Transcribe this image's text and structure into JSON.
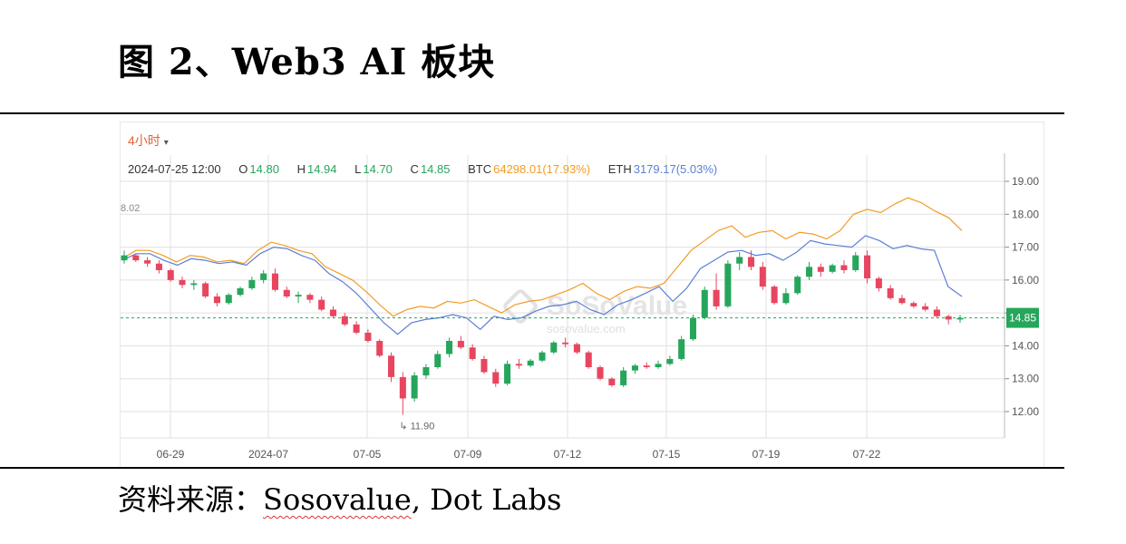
{
  "figure": {
    "title": "图 2、Web3 AI 板块",
    "source_label": "资料来源：",
    "source_name": "Sosovalue",
    "source_rest": ", Dot Labs"
  },
  "toolbar": {
    "interval": "4小时",
    "interval_caret": "▾"
  },
  "info": {
    "date": "2024-07-25 12:00",
    "o_label": "O",
    "o_value": "14.80",
    "h_label": "H",
    "h_value": "14.94",
    "l_label": "L",
    "l_value": "14.70",
    "c_label": "C",
    "c_value": "14.85",
    "btc_label": "BTC",
    "btc_value": "64298.01(17.93%)",
    "eth_label": "ETH",
    "eth_value": "3179.17(5.03%)"
  },
  "watermark": {
    "brand": "SoSoValue",
    "url": "sosovalue.com"
  },
  "colors": {
    "up": "#26a65b",
    "down": "#e8455f",
    "btc": "#f39c24",
    "eth": "#5b7fd6",
    "price_line": "#26a65b",
    "grid": "#e0e0e0"
  },
  "chart_data": {
    "type": "line",
    "y_ticks": [
      "19.00",
      "18.00",
      "17.00",
      "16.00",
      "15.00",
      "14.00",
      "13.00",
      "12.00"
    ],
    "ylim": [
      11.2,
      19.8
    ],
    "x_ticks": [
      "06-29",
      "2024-07",
      "07-05",
      "07-09",
      "07-12",
      "07-15",
      "07-19",
      "07-22"
    ],
    "current_price": "14.85",
    "min_label": "11.90",
    "max_label_partial": "8.02",
    "series": [
      {
        "name": "BTC",
        "values": [
          16.65,
          16.9,
          16.9,
          16.75,
          16.55,
          16.75,
          16.7,
          16.55,
          16.6,
          16.5,
          16.9,
          17.15,
          17.05,
          16.9,
          16.8,
          16.4,
          16.2,
          16.0,
          15.65,
          15.25,
          14.9,
          15.1,
          15.2,
          15.15,
          15.35,
          15.3,
          15.4,
          15.2,
          15.0,
          15.25,
          15.35,
          15.4,
          15.55,
          15.7,
          15.9,
          15.6,
          15.4,
          15.65,
          15.8,
          15.75,
          15.9,
          16.4,
          16.9,
          17.2,
          17.5,
          17.65,
          17.3,
          17.45,
          17.5,
          17.25,
          17.45,
          17.4,
          17.25,
          17.5,
          18.0,
          18.15,
          18.05,
          18.3,
          18.5,
          18.35,
          18.1,
          17.9,
          17.5
        ],
        "color": "#f39c24"
      },
      {
        "name": "ETH",
        "values": [
          16.6,
          16.8,
          16.8,
          16.6,
          16.45,
          16.65,
          16.6,
          16.5,
          16.55,
          16.45,
          16.8,
          17.0,
          16.95,
          16.75,
          16.6,
          16.2,
          15.95,
          15.6,
          15.15,
          14.7,
          14.35,
          14.7,
          14.8,
          14.85,
          14.95,
          14.85,
          14.5,
          14.9,
          14.8,
          14.85,
          15.05,
          15.2,
          15.25,
          15.35,
          15.1,
          14.95,
          15.25,
          15.4,
          15.6,
          15.8,
          15.35,
          15.75,
          16.35,
          16.6,
          16.85,
          16.9,
          16.75,
          16.8,
          16.6,
          16.85,
          17.2,
          17.1,
          17.05,
          17.0,
          17.35,
          17.2,
          16.95,
          17.05,
          16.95,
          16.9,
          15.8,
          15.5
        ],
        "color": "#5b7fd6"
      }
    ],
    "candles": [
      [
        16.6,
        16.9,
        16.5,
        16.75
      ],
      [
        16.75,
        16.8,
        16.55,
        16.6
      ],
      [
        16.6,
        16.7,
        16.4,
        16.5
      ],
      [
        16.5,
        16.6,
        16.2,
        16.3
      ],
      [
        16.3,
        16.35,
        15.95,
        16.0
      ],
      [
        16.0,
        16.1,
        15.75,
        15.85
      ],
      [
        15.85,
        16.0,
        15.7,
        15.9
      ],
      [
        15.9,
        15.95,
        15.45,
        15.5
      ],
      [
        15.5,
        15.6,
        15.2,
        15.3
      ],
      [
        15.3,
        15.6,
        15.25,
        15.55
      ],
      [
        15.55,
        15.8,
        15.5,
        15.75
      ],
      [
        15.75,
        16.1,
        15.7,
        16.0
      ],
      [
        16.0,
        16.3,
        15.9,
        16.2
      ],
      [
        16.2,
        16.35,
        15.65,
        15.7
      ],
      [
        15.7,
        15.8,
        15.45,
        15.5
      ],
      [
        15.5,
        15.65,
        15.3,
        15.55
      ],
      [
        15.55,
        15.6,
        15.3,
        15.4
      ],
      [
        15.4,
        15.5,
        15.05,
        15.1
      ],
      [
        15.1,
        15.2,
        14.85,
        14.9
      ],
      [
        14.9,
        15.0,
        14.6,
        14.65
      ],
      [
        14.65,
        14.75,
        14.35,
        14.4
      ],
      [
        14.4,
        14.5,
        14.1,
        14.15
      ],
      [
        14.15,
        14.2,
        13.65,
        13.7
      ],
      [
        13.7,
        13.8,
        12.9,
        13.05
      ],
      [
        13.05,
        13.2,
        11.9,
        12.4
      ],
      [
        12.4,
        13.2,
        12.3,
        13.1
      ],
      [
        13.1,
        13.45,
        13.0,
        13.35
      ],
      [
        13.35,
        13.85,
        13.3,
        13.75
      ],
      [
        13.75,
        14.25,
        13.65,
        14.15
      ],
      [
        14.15,
        14.3,
        13.9,
        13.95
      ],
      [
        13.95,
        14.05,
        13.55,
        13.6
      ],
      [
        13.6,
        13.7,
        13.15,
        13.2
      ],
      [
        13.2,
        13.3,
        12.75,
        12.85
      ],
      [
        12.85,
        13.55,
        12.8,
        13.45
      ],
      [
        13.45,
        13.6,
        13.3,
        13.4
      ],
      [
        13.4,
        13.6,
        13.35,
        13.55
      ],
      [
        13.55,
        13.85,
        13.5,
        13.8
      ],
      [
        13.8,
        14.15,
        13.75,
        14.1
      ],
      [
        14.1,
        14.25,
        13.95,
        14.05
      ],
      [
        14.05,
        14.1,
        13.75,
        13.8
      ],
      [
        13.8,
        13.85,
        13.3,
        13.35
      ],
      [
        13.35,
        13.4,
        12.95,
        13.0
      ],
      [
        13.0,
        13.05,
        12.75,
        12.8
      ],
      [
        12.8,
        13.35,
        12.75,
        13.25
      ],
      [
        13.25,
        13.45,
        13.15,
        13.4
      ],
      [
        13.4,
        13.5,
        13.3,
        13.35
      ],
      [
        13.35,
        13.55,
        13.3,
        13.45
      ],
      [
        13.45,
        13.7,
        13.4,
        13.6
      ],
      [
        13.6,
        14.3,
        13.55,
        14.2
      ],
      [
        14.2,
        14.95,
        14.15,
        14.85
      ],
      [
        14.85,
        15.8,
        14.8,
        15.7
      ],
      [
        15.7,
        16.2,
        15.1,
        15.2
      ],
      [
        15.2,
        16.6,
        15.15,
        16.5
      ],
      [
        16.5,
        16.85,
        16.3,
        16.7
      ],
      [
        16.7,
        16.9,
        16.3,
        16.4
      ],
      [
        16.4,
        16.55,
        15.7,
        15.8
      ],
      [
        15.8,
        15.85,
        15.25,
        15.3
      ],
      [
        15.3,
        15.75,
        15.25,
        15.6
      ],
      [
        15.6,
        16.15,
        15.55,
        16.1
      ],
      [
        16.1,
        16.55,
        16.0,
        16.4
      ],
      [
        16.4,
        16.5,
        16.1,
        16.25
      ],
      [
        16.25,
        16.5,
        16.2,
        16.45
      ],
      [
        16.45,
        16.6,
        16.2,
        16.3
      ],
      [
        16.3,
        16.85,
        16.25,
        16.75
      ],
      [
        16.75,
        16.9,
        15.9,
        16.05
      ],
      [
        16.05,
        16.1,
        15.65,
        15.75
      ],
      [
        15.75,
        15.85,
        15.4,
        15.45
      ],
      [
        15.45,
        15.55,
        15.25,
        15.3
      ],
      [
        15.3,
        15.35,
        15.15,
        15.2
      ],
      [
        15.2,
        15.3,
        15.05,
        15.1
      ],
      [
        15.1,
        15.2,
        14.85,
        14.9
      ],
      [
        14.9,
        14.95,
        14.65,
        14.8
      ],
      [
        14.8,
        14.94,
        14.7,
        14.85
      ]
    ]
  }
}
